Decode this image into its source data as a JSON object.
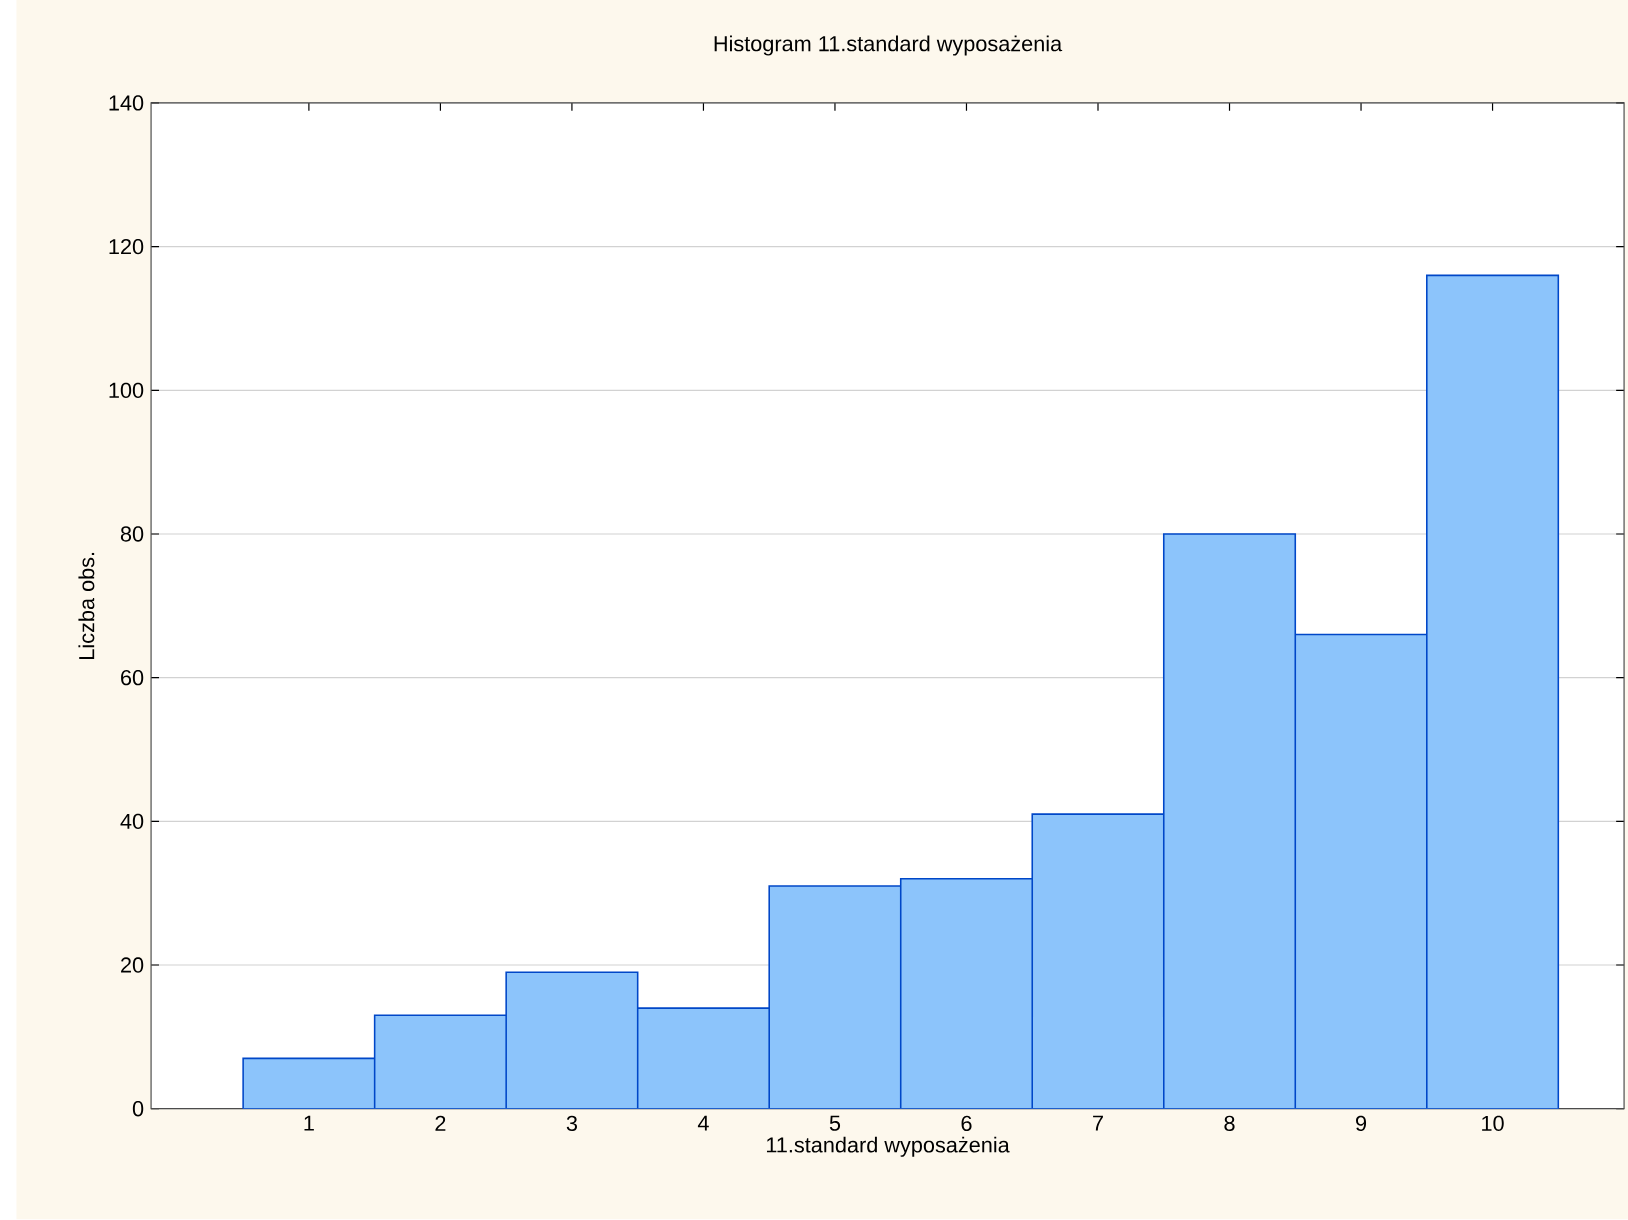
{
  "chart_data": {
    "type": "histogram",
    "title": "Histogram 11.standard wyposażenia",
    "xlabel": "11.standard wyposażenia",
    "ylabel": "Liczba obs.",
    "bins": [
      0.5,
      1.5,
      2.5,
      3.5,
      4.5,
      5.5,
      6.5,
      7.5,
      8.5,
      9.5,
      10.5
    ],
    "values": [
      7,
      13,
      19,
      14,
      31,
      32,
      41,
      80,
      66,
      116
    ],
    "color": "#8cc4fb",
    "xlim": [
      -0.2,
      11
    ],
    "xticks": [
      1,
      2,
      3,
      4,
      5,
      6,
      7,
      8,
      9,
      10
    ],
    "ylim": [
      0,
      140
    ],
    "yticks": [
      0,
      20,
      40,
      60,
      80,
      100,
      120,
      140
    ],
    "grid": "y"
  }
}
